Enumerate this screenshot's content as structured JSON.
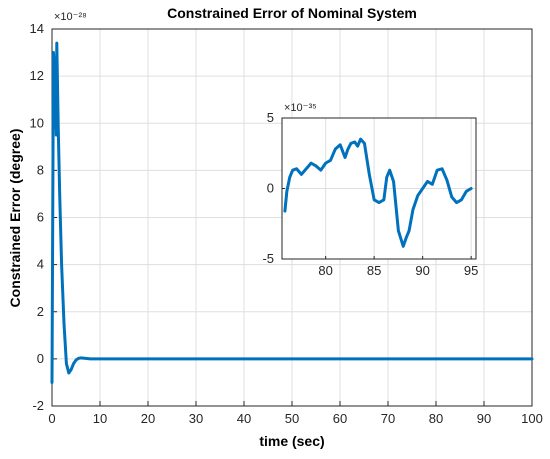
{
  "chart_data": [
    {
      "type": "line",
      "title": "Constrained Error of Nominal System",
      "xlabel": "time (sec)",
      "ylabel": "Constrained Error (degree)",
      "y_exponent": "×10⁻²⁸",
      "xlim": [
        0,
        100
      ],
      "ylim": [
        -2,
        14
      ],
      "grid": true,
      "x_ticks": [
        "0",
        "10",
        "20",
        "30",
        "40",
        "50",
        "60",
        "70",
        "80",
        "90",
        "100"
      ],
      "y_ticks": [
        "-2",
        "0",
        "2",
        "4",
        "6",
        "8",
        "10",
        "12",
        "14"
      ],
      "line_color": "#0072bd",
      "series": [
        {
          "x": [
            0,
            0.3,
            0.6,
            0.9,
            1.0,
            1.3,
            1.6,
            2.0,
            2.5,
            3.0,
            3.5,
            4.0,
            4.5,
            5.0,
            5.5,
            6.0,
            7.0,
            8.0,
            100
          ],
          "y": [
            -1.0,
            13.0,
            12.0,
            9.5,
            13.4,
            9.8,
            7.0,
            4.0,
            1.5,
            -0.2,
            -0.6,
            -0.45,
            -0.2,
            -0.05,
            0.02,
            0.04,
            0.02,
            0.0,
            0.0
          ]
        }
      ]
    },
    {
      "type": "line",
      "title": "",
      "y_exponent": "×10⁻³⁵",
      "xlim": [
        75.5,
        95.5
      ],
      "ylim": [
        -5,
        5
      ],
      "grid": true,
      "x_ticks": [
        "80",
        "85",
        "90",
        "95"
      ],
      "y_ticks": [
        "-5",
        "0",
        "5"
      ],
      "line_color": "#0072bd",
      "series": [
        {
          "x": [
            75.8,
            76.0,
            76.3,
            76.6,
            77.0,
            77.5,
            78.0,
            78.5,
            79.0,
            79.5,
            80.0,
            80.5,
            81.0,
            81.5,
            82.0,
            82.3,
            82.6,
            83.0,
            83.3,
            83.6,
            84.0,
            84.5,
            85.0,
            85.5,
            86.0,
            86.3,
            86.6,
            87.0,
            87.5,
            88.0,
            88.3,
            88.6,
            89.0,
            89.5,
            90.0,
            90.5,
            91.0,
            91.5,
            92.0,
            92.5,
            93.0,
            93.5,
            94.0,
            94.5,
            95.0
          ],
          "y": [
            -1.6,
            -0.2,
            0.8,
            1.3,
            1.4,
            1.0,
            1.4,
            1.8,
            1.6,
            1.3,
            1.8,
            2.0,
            2.8,
            3.1,
            2.2,
            2.8,
            3.2,
            3.3,
            3.0,
            3.5,
            3.2,
            1.0,
            -0.8,
            -1.0,
            -0.8,
            0.8,
            1.3,
            0.5,
            -3.0,
            -4.1,
            -3.5,
            -3.0,
            -1.5,
            -0.5,
            0.0,
            0.5,
            0.3,
            1.3,
            1.4,
            0.6,
            -0.6,
            -1.0,
            -0.8,
            -0.2,
            0.0
          ]
        }
      ]
    }
  ]
}
